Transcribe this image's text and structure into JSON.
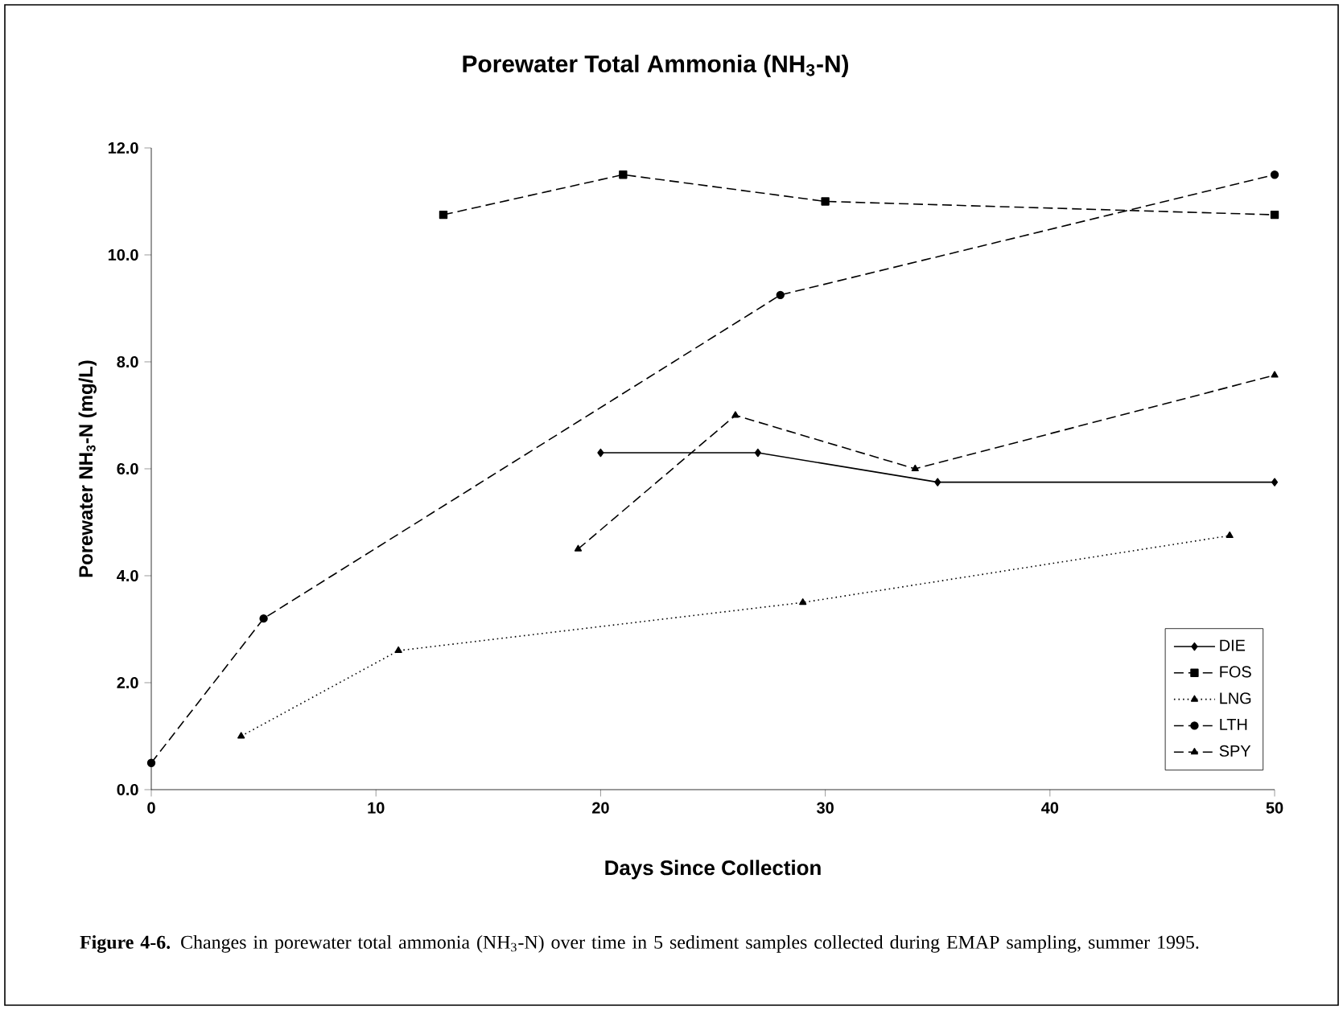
{
  "chart_data": {
    "type": "line",
    "title": "Porewater Total Ammonia (NH$_{3}$-N)",
    "xlabel": "Days Since Collection",
    "ylabel": "Porewater NH$_{3}$-N  (mg/L)",
    "xlim": [
      0,
      50
    ],
    "xticks": [
      0,
      10,
      20,
      30,
      40,
      50
    ],
    "ylim": [
      0,
      12
    ],
    "yticks": [
      {
        "value": 0,
        "label": "0.0"
      },
      {
        "value": 2,
        "label": "2.0"
      },
      {
        "value": 4,
        "label": "4.0"
      },
      {
        "value": 6,
        "label": "6.0"
      },
      {
        "value": 8,
        "label": "8.0"
      },
      {
        "value": 10,
        "label": "10.0"
      },
      {
        "value": 12,
        "label": "12.0"
      }
    ],
    "grid": false,
    "legend": "bottom right",
    "series": [
      {
        "name": "DIE",
        "color": "#000000",
        "marker": "diamond",
        "line_style": "solid",
        "x": [
          20,
          27,
          35,
          50
        ],
        "values": [
          6.3,
          6.3,
          5.75,
          5.75
        ]
      },
      {
        "name": "FOS",
        "color": "#000000",
        "marker": "square",
        "line_style": "dashed",
        "x": [
          13,
          21,
          30,
          50
        ],
        "values": [
          10.75,
          11.5,
          11.0,
          10.75
        ]
      },
      {
        "name": "LNG",
        "color": "#000000",
        "marker": "triangle",
        "line_style": "dotted",
        "x": [
          4,
          11,
          29,
          48
        ],
        "values": [
          1.0,
          2.6,
          3.5,
          4.75
        ]
      },
      {
        "name": "LTH",
        "color": "#000000",
        "marker": "circle",
        "line_style": "dashed",
        "x": [
          0,
          5,
          28,
          50
        ],
        "values": [
          0.5,
          3.2,
          9.25,
          11.5
        ]
      },
      {
        "name": "SPY",
        "color": "#000000",
        "marker": "triangle",
        "line_style": "dashed",
        "x": [
          19,
          26,
          34,
          50
        ],
        "values": [
          4.5,
          7.0,
          6.0,
          7.75
        ]
      }
    ],
    "annotations": [
      "**Figure 4-6.** Changes in porewater total ammonia (NH$_{3}$-N) over time in 5 sediment samples collected during EMAP sampling, summer 1995."
    ]
  }
}
